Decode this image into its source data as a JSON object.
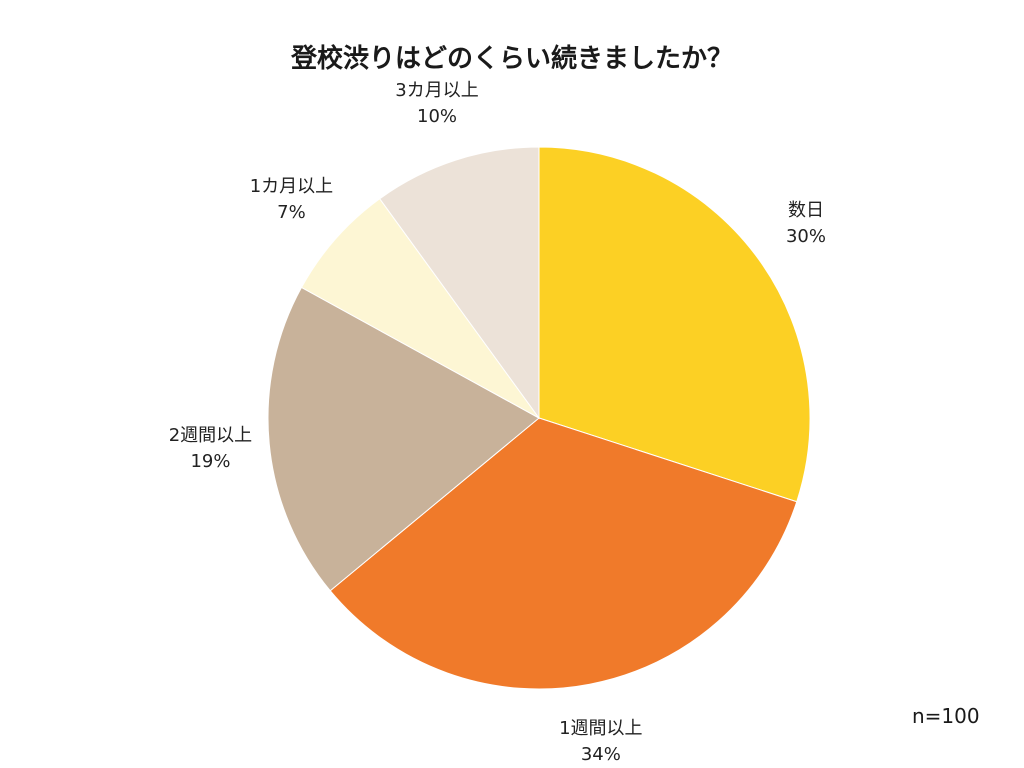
{
  "chart_data": {
    "type": "pie",
    "title": "登校渋りはどのくらい続きましたか？",
    "sample_note": "n=100",
    "slices": [
      {
        "label": "数日",
        "value": 30,
        "value_label": "30%",
        "color": "#FCD024"
      },
      {
        "label": "1週間以上",
        "value": 34,
        "value_label": "34%",
        "color": "#F07A2A"
      },
      {
        "label": "2週間以上",
        "value": 19,
        "value_label": "19%",
        "color": "#C8B29A"
      },
      {
        "label": "1カ月以上",
        "value": 7,
        "value_label": "7%",
        "color": "#FDF6D4"
      },
      {
        "label": "3カ月以上",
        "value": 10,
        "value_label": "10%",
        "color": "#ECE2D8"
      }
    ]
  }
}
